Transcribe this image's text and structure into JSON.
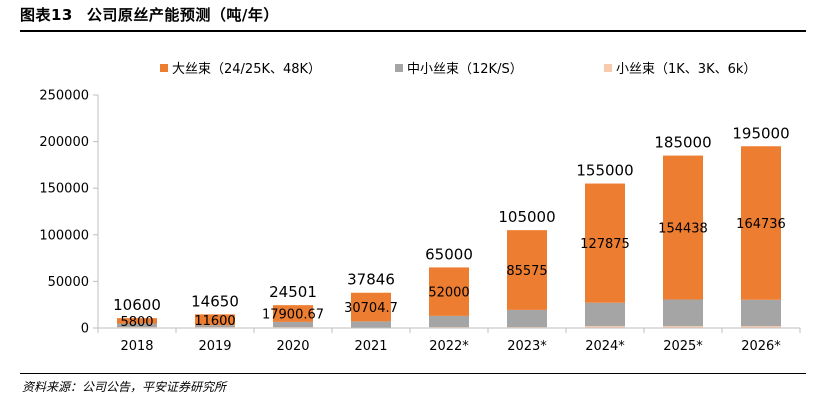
{
  "figure": {
    "label": "图表13",
    "title": "公司原丝产能预测（吨/年）",
    "source": "资料来源：公司公告，平安证券研究所"
  },
  "colors": {
    "large": "#ED7D31",
    "medium": "#A5A5A5",
    "small": "#F8CBAD",
    "axis": "#BFBFBF"
  },
  "chart_data": {
    "type": "bar",
    "stacked": true,
    "categories": [
      "2018",
      "2019",
      "2020",
      "2021",
      "2022*",
      "2023*",
      "2024*",
      "2025*",
      "2026*"
    ],
    "series": [
      {
        "name": "大丝束（24/25K、48K）",
        "key": "large",
        "values": [
          5800,
          11600,
          17900.67,
          30704.7,
          52000,
          85575,
          127875,
          154438,
          164736
        ],
        "labels": [
          "5800",
          "11600",
          "17900.67",
          "30704.7",
          "52000",
          "85575",
          "127875",
          "154438",
          "164736"
        ]
      },
      {
        "name": "中小丝束（12K/S）",
        "key": "medium",
        "values": [
          3800,
          2050,
          5600,
          6641,
          12000,
          18425,
          25125,
          28562,
          28264
        ]
      },
      {
        "name": "小丝束（1K、3K、6k）",
        "key": "small",
        "values": [
          1000,
          1000,
          1000,
          500,
          1000,
          1000,
          2000,
          2000,
          2000
        ]
      }
    ],
    "totals": [
      10600,
      14650,
      24501,
      37846,
      65000,
      105000,
      155000,
      185000,
      195000
    ],
    "total_labels": [
      "10600",
      "14650",
      "24501",
      "37846",
      "65000",
      "105000",
      "155000",
      "185000",
      "195000"
    ],
    "ylim": [
      0,
      250000
    ],
    "yticks": [
      0,
      50000,
      100000,
      150000,
      200000,
      250000
    ],
    "ytick_labels": [
      "0",
      "50000",
      "100000",
      "150000",
      "200000",
      "250000"
    ],
    "legend_position": "top-center",
    "grid": false
  }
}
